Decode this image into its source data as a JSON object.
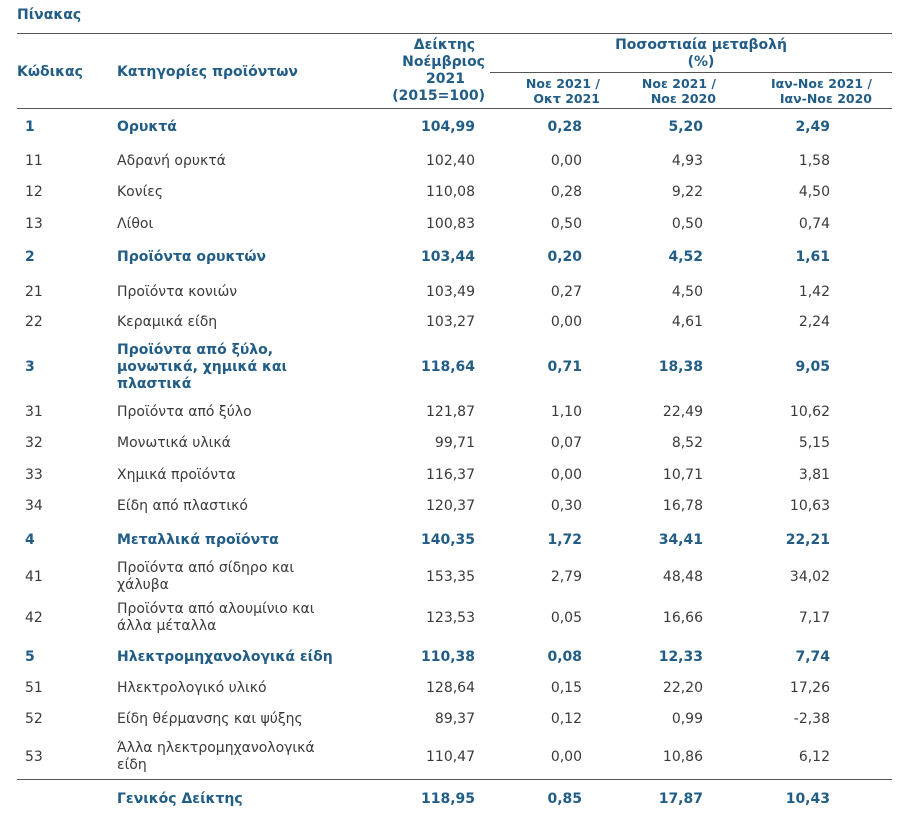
{
  "caption": "Πίνακας",
  "header": {
    "code": "Κώδικας",
    "category": "Κατηγορίες προϊόντων",
    "index_lines": [
      "Δείκτης",
      "Νοέμβριος",
      "2021",
      "(2015=100)"
    ],
    "change_group_lines": [
      "Ποσοστιαία μεταβολή",
      "(%)"
    ],
    "change_cols": [
      [
        "Νοε 2021 /",
        "Οκτ 2021"
      ],
      [
        "Νοε 2021 /",
        "Νοε 2020"
      ],
      [
        "Ιαν-Νοε 2021 /",
        "Ιαν-Νοε 2020"
      ]
    ]
  },
  "rows": [
    {
      "code": "1",
      "name": "Ορυκτά",
      "index": "104,99",
      "c1": "0,28",
      "c2": "5,20",
      "c3": "2,49",
      "bold": true
    },
    {
      "code": "11",
      "name": "Αδρανή ορυκτά",
      "index": "102,40",
      "c1": "0,00",
      "c2": "4,93",
      "c3": "1,58",
      "bold": false
    },
    {
      "code": "12",
      "name": "Κονίες",
      "index": "110,08",
      "c1": "0,28",
      "c2": "9,22",
      "c3": "4,50",
      "bold": false
    },
    {
      "code": "13",
      "name": "Λίθοι",
      "index": "100,83",
      "c1": "0,50",
      "c2": "0,50",
      "c3": "0,74",
      "bold": false
    },
    {
      "code": "2",
      "name": "Προϊόντα ορυκτών",
      "index": "103,44",
      "c1": "0,20",
      "c2": "4,52",
      "c3": "1,61",
      "bold": true
    },
    {
      "code": "21",
      "name": "Προϊόντα κονιών",
      "index": "103,49",
      "c1": "0,27",
      "c2": "4,50",
      "c3": "1,42",
      "bold": false
    },
    {
      "code": "22",
      "name": "Κεραμικά είδη",
      "index": "103,27",
      "c1": "0,00",
      "c2": "4,61",
      "c3": "2,24",
      "bold": false
    },
    {
      "code": "3",
      "name": "Προϊόντα από ξύλο, μονωτικά, χημικά και πλαστικά",
      "index": "118,64",
      "c1": "0,71",
      "c2": "18,38",
      "c3": "9,05",
      "bold": true
    },
    {
      "code": "31",
      "name": "Προϊόντα από ξύλο",
      "index": "121,87",
      "c1": "1,10",
      "c2": "22,49",
      "c3": "10,62",
      "bold": false
    },
    {
      "code": "32",
      "name": "Μονωτικά υλικά",
      "index": "99,71",
      "c1": "0,07",
      "c2": "8,52",
      "c3": "5,15",
      "bold": false
    },
    {
      "code": "33",
      "name": "Χημικά προϊόντα",
      "index": "116,37",
      "c1": "0,00",
      "c2": "10,71",
      "c3": "3,81",
      "bold": false
    },
    {
      "code": "34",
      "name": "Είδη από πλαστικό",
      "index": "120,37",
      "c1": "0,30",
      "c2": "16,78",
      "c3": "10,63",
      "bold": false
    },
    {
      "code": "4",
      "name": "Μεταλλικά προϊόντα",
      "index": "140,35",
      "c1": "1,72",
      "c2": "34,41",
      "c3": "22,21",
      "bold": true
    },
    {
      "code": "41",
      "name": "Προϊόντα από σίδηρο και χάλυβα",
      "index": "153,35",
      "c1": "2,79",
      "c2": "48,48",
      "c3": "34,02",
      "bold": false
    },
    {
      "code": "42",
      "name": "Προϊόντα από αλουμίνιο και άλλα μέταλλα",
      "index": "123,53",
      "c1": "0,05",
      "c2": "16,66",
      "c3": "7,17",
      "bold": false
    },
    {
      "code": "5",
      "name": "Ηλεκτρομηχανολογικά είδη",
      "index": "110,38",
      "c1": "0,08",
      "c2": "12,33",
      "c3": "7,74",
      "bold": true
    },
    {
      "code": "51",
      "name": "Ηλεκτρολογικό υλικό",
      "index": "128,64",
      "c1": "0,15",
      "c2": "22,20",
      "c3": "17,26",
      "bold": false
    },
    {
      "code": "52",
      "name": "Είδη θέρμανσης και ψύξης",
      "index": "89,37",
      "c1": "0,12",
      "c2": "0,99",
      "c3": "-2,38",
      "bold": false
    },
    {
      "code": "53",
      "name": "Άλλα ηλεκτρομηχανολογικά είδη",
      "index": "110,47",
      "c1": "0,00",
      "c2": "10,86",
      "c3": "6,12",
      "bold": false
    }
  ],
  "total": {
    "code": "",
    "name": "Γενικός Δείκτης",
    "index": "118,95",
    "c1": "0,85",
    "c2": "17,87",
    "c3": "10,43"
  }
}
